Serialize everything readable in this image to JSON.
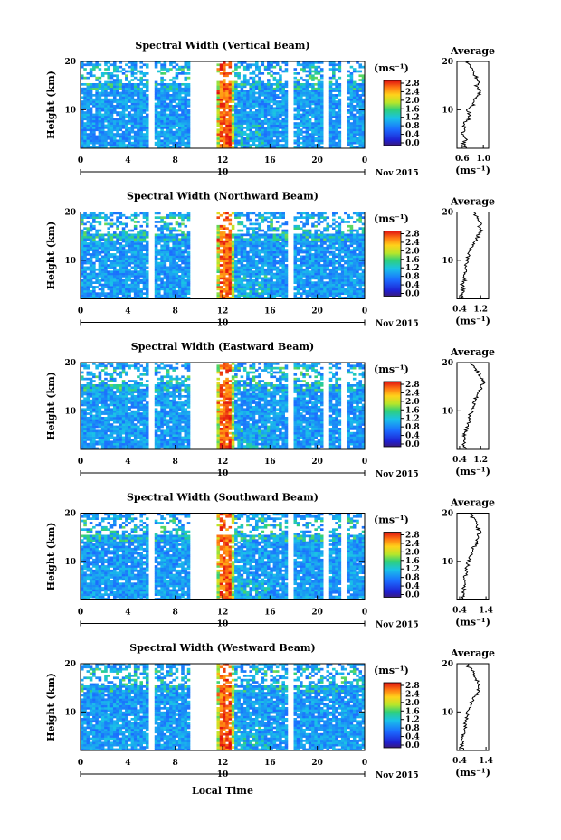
{
  "chart_data": [
    {
      "type": "heatmap",
      "title": "Spectral Width (Vertical Beam)",
      "ylabel": "Height (km)",
      "ylim": [
        2,
        20
      ],
      "y_ticks": [
        "20",
        "10"
      ],
      "x_ticks": [
        "0",
        "4",
        "8",
        "12",
        "16",
        "20",
        "0"
      ],
      "date_label": "10",
      "month_label": "Nov 2015",
      "colorbar": {
        "unit": "(ms⁻¹)",
        "ticks": [
          "2.8",
          "2.4",
          "2.0",
          "1.6",
          "1.2",
          "0.8",
          "0.4",
          "0.0"
        ],
        "range": [
          0.0,
          2.8
        ]
      },
      "data_gaps_hours": [
        [
          5.8,
          6.2
        ],
        [
          9.2,
          11.4
        ],
        [
          17.6,
          18.0
        ],
        [
          20.4,
          20.9
        ],
        [
          22.0,
          22.4
        ]
      ],
      "average": {
        "title": "Average",
        "xlabel": "(ms⁻¹)",
        "x_ticks": [
          "0.6",
          "1.0"
        ],
        "xlim": [
          0.5,
          1.1
        ],
        "y_ticks": [
          "20",
          "10"
        ],
        "profile": [
          [
            2,
            0.65
          ],
          [
            3,
            0.62
          ],
          [
            4,
            0.68
          ],
          [
            5,
            0.58
          ],
          [
            6,
            0.66
          ],
          [
            7,
            0.62
          ],
          [
            8,
            0.72
          ],
          [
            9,
            0.74
          ],
          [
            10,
            0.7
          ],
          [
            11,
            0.8
          ],
          [
            12,
            0.82
          ],
          [
            13,
            0.9
          ],
          [
            14,
            0.96
          ],
          [
            15,
            0.86
          ],
          [
            16,
            0.92
          ],
          [
            17,
            0.84
          ],
          [
            18,
            0.8
          ],
          [
            19,
            0.74
          ],
          [
            20,
            0.7
          ]
        ]
      }
    },
    {
      "type": "heatmap",
      "title": "Spectral Width (Northward Beam)",
      "ylabel": "Height (km)",
      "ylim": [
        2,
        20
      ],
      "y_ticks": [
        "20",
        "10"
      ],
      "x_ticks": [
        "0",
        "4",
        "8",
        "12",
        "16",
        "20",
        "0"
      ],
      "date_label": "10",
      "month_label": "Nov 2015",
      "colorbar": {
        "unit": "(ms⁻¹)",
        "ticks": [
          "2.8",
          "2.4",
          "2.0",
          "1.6",
          "1.2",
          "0.8",
          "0.4",
          "0.0"
        ],
        "range": [
          0.0,
          2.8
        ]
      },
      "data_gaps_hours": [
        [
          5.8,
          6.2
        ],
        [
          9.2,
          11.4
        ],
        [
          17.6,
          18.0
        ]
      ],
      "average": {
        "title": "Average",
        "xlabel": "(ms⁻¹)",
        "x_ticks": [
          "0.4",
          "1.2"
        ],
        "xlim": [
          0.3,
          1.5
        ],
        "y_ticks": [
          "20",
          "10"
        ],
        "profile": [
          [
            2,
            0.5
          ],
          [
            3,
            0.46
          ],
          [
            4,
            0.55
          ],
          [
            5,
            0.5
          ],
          [
            6,
            0.6
          ],
          [
            7,
            0.58
          ],
          [
            8,
            0.66
          ],
          [
            9,
            0.62
          ],
          [
            10,
            0.7
          ],
          [
            11,
            0.74
          ],
          [
            12,
            0.82
          ],
          [
            13,
            0.9
          ],
          [
            14,
            1.0
          ],
          [
            15,
            1.1
          ],
          [
            16,
            1.2
          ],
          [
            17,
            1.15
          ],
          [
            18,
            1.2
          ],
          [
            19,
            1.05
          ],
          [
            20,
            0.9
          ]
        ]
      }
    },
    {
      "type": "heatmap",
      "title": "Spectral Width (Eastward Beam)",
      "ylabel": "Height (km)",
      "ylim": [
        2,
        20
      ],
      "y_ticks": [
        "20",
        "10"
      ],
      "x_ticks": [
        "0",
        "4",
        "8",
        "12",
        "16",
        "20",
        "0"
      ],
      "date_label": "10",
      "month_label": "Nov 2015",
      "colorbar": {
        "unit": "(ms⁻¹)",
        "ticks": [
          "2.8",
          "2.4",
          "2.0",
          "1.6",
          "1.2",
          "0.8",
          "0.4",
          "0.0"
        ],
        "range": [
          0.0,
          2.8
        ]
      },
      "data_gaps_hours": [
        [
          5.8,
          6.2
        ],
        [
          9.2,
          11.4
        ],
        [
          17.6,
          18.0
        ],
        [
          20.4,
          20.9
        ],
        [
          22.0,
          22.4
        ]
      ],
      "average": {
        "title": "Average",
        "xlabel": "(ms⁻¹)",
        "x_ticks": [
          "0.4",
          "1.2"
        ],
        "xlim": [
          0.3,
          1.5
        ],
        "y_ticks": [
          "20",
          "10"
        ],
        "profile": [
          [
            2,
            0.6
          ],
          [
            3,
            0.55
          ],
          [
            4,
            0.62
          ],
          [
            5,
            0.58
          ],
          [
            6,
            0.66
          ],
          [
            7,
            0.7
          ],
          [
            8,
            0.74
          ],
          [
            9,
            0.8
          ],
          [
            10,
            0.86
          ],
          [
            11,
            0.9
          ],
          [
            12,
            0.96
          ],
          [
            13,
            1.05
          ],
          [
            14,
            1.15
          ],
          [
            15,
            1.22
          ],
          [
            16,
            1.3
          ],
          [
            17,
            1.2
          ],
          [
            18,
            1.1
          ],
          [
            19,
            0.95
          ],
          [
            20,
            0.8
          ]
        ]
      }
    },
    {
      "type": "heatmap",
      "title": "Spectral Width (Southward Beam)",
      "ylabel": "Height (km)",
      "ylim": [
        2,
        20
      ],
      "y_ticks": [
        "20",
        "10"
      ],
      "x_ticks": [
        "0",
        "4",
        "8",
        "12",
        "16",
        "20",
        "0"
      ],
      "date_label": "10",
      "month_label": "Nov 2015",
      "colorbar": {
        "unit": "(ms⁻¹)",
        "ticks": [
          "2.8",
          "2.4",
          "2.0",
          "1.6",
          "1.2",
          "0.8",
          "0.4",
          "0.0"
        ],
        "range": [
          0.0,
          2.8
        ]
      },
      "data_gaps_hours": [
        [
          5.8,
          6.2
        ],
        [
          9.2,
          11.4
        ],
        [
          17.6,
          18.0
        ],
        [
          20.4,
          20.9
        ],
        [
          22.0,
          22.4
        ]
      ],
      "average": {
        "title": "Average",
        "xlabel": "(ms⁻¹)",
        "x_ticks": [
          "0.4",
          "1.4"
        ],
        "xlim": [
          0.3,
          1.5
        ],
        "y_ticks": [
          "20",
          "10"
        ],
        "profile": [
          [
            2,
            0.55
          ],
          [
            3,
            0.52
          ],
          [
            4,
            0.58
          ],
          [
            5,
            0.55
          ],
          [
            6,
            0.6
          ],
          [
            7,
            0.62
          ],
          [
            8,
            0.66
          ],
          [
            9,
            0.7
          ],
          [
            10,
            0.74
          ],
          [
            11,
            0.8
          ],
          [
            12,
            0.86
          ],
          [
            13,
            0.95
          ],
          [
            14,
            1.05
          ],
          [
            15,
            1.1
          ],
          [
            16,
            1.15
          ],
          [
            17,
            1.1
          ],
          [
            18,
            1.05
          ],
          [
            19,
            0.9
          ],
          [
            20,
            0.75
          ]
        ]
      }
    },
    {
      "type": "heatmap",
      "title": "Spectral Width (Westward Beam)",
      "ylabel": "Height (km)",
      "xlabel": "Local Time",
      "ylim": [
        2,
        20
      ],
      "y_ticks": [
        "20",
        "10"
      ],
      "x_ticks": [
        "0",
        "4",
        "8",
        "12",
        "16",
        "20",
        "0"
      ],
      "date_label": "10",
      "month_label": "Nov 2015",
      "colorbar": {
        "unit": "(ms⁻¹)",
        "ticks": [
          "2.8",
          "2.4",
          "2.0",
          "1.6",
          "1.2",
          "0.8",
          "0.4",
          "0.0"
        ],
        "range": [
          0.0,
          2.8
        ]
      },
      "data_gaps_hours": [
        [
          5.8,
          6.2
        ],
        [
          9.2,
          11.4
        ],
        [
          17.6,
          18.0
        ]
      ],
      "average": {
        "title": "Average",
        "xlabel": "(ms⁻¹)",
        "x_ticks": [
          "0.4",
          "1.4"
        ],
        "xlim": [
          0.3,
          1.5
        ],
        "y_ticks": [
          "20",
          "10"
        ],
        "profile": [
          [
            2,
            0.5
          ],
          [
            3,
            0.48
          ],
          [
            4,
            0.54
          ],
          [
            5,
            0.52
          ],
          [
            6,
            0.58
          ],
          [
            7,
            0.6
          ],
          [
            8,
            0.64
          ],
          [
            9,
            0.68
          ],
          [
            10,
            0.72
          ],
          [
            11,
            0.78
          ],
          [
            12,
            0.85
          ],
          [
            13,
            0.95
          ],
          [
            14,
            1.1
          ],
          [
            15,
            1.05
          ],
          [
            16,
            1.12
          ],
          [
            17,
            1.0
          ],
          [
            18,
            0.95
          ],
          [
            19,
            0.8
          ],
          [
            20,
            0.65
          ]
        ]
      }
    }
  ]
}
